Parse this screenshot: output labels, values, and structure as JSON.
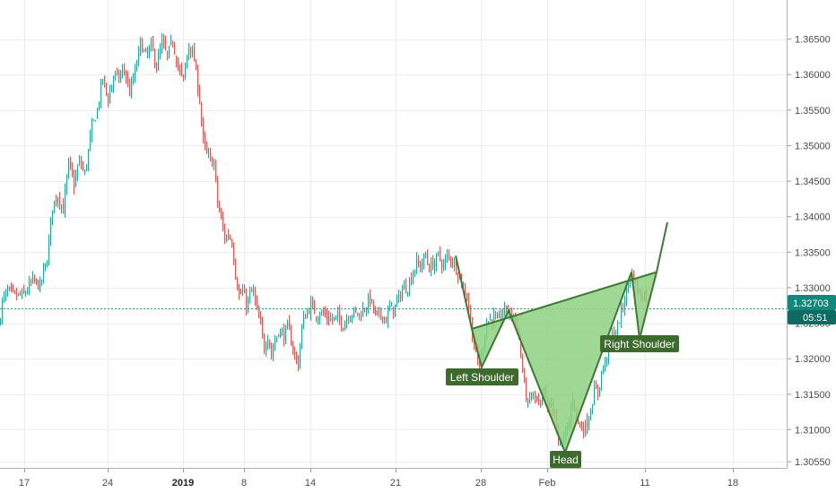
{
  "chart_data": {
    "type": "candlestick",
    "x_tick_labels": [
      "17",
      "24",
      "2019",
      "8",
      "14",
      "21",
      "28",
      "Feb",
      "11",
      "18"
    ],
    "y_ticks": [
      1.3055,
      1.31,
      1.315,
      1.32,
      1.325,
      1.33,
      1.335,
      1.34,
      1.345,
      1.35,
      1.355,
      1.36,
      1.365
    ],
    "y_tick_labels": [
      "1.30550",
      "1.31000",
      "1.31500",
      "1.32000",
      "1.32500",
      "1.33000",
      "1.33500",
      "1.34000",
      "1.34500",
      "1.35000",
      "1.35500",
      "1.36000",
      "1.36500"
    ],
    "ylim": [
      1.3045,
      1.3705
    ],
    "last_price": 1.32703,
    "last_price_label": "1.32703",
    "countdown_label": "05:51",
    "price_path": [
      [
        0,
        1.3245
      ],
      [
        4,
        1.328
      ],
      [
        10,
        1.3295
      ],
      [
        18,
        1.3288
      ],
      [
        28,
        1.329
      ],
      [
        38,
        1.331
      ],
      [
        46,
        1.3302
      ],
      [
        54,
        1.334
      ],
      [
        60,
        1.3415
      ],
      [
        66,
        1.343
      ],
      [
        72,
        1.341
      ],
      [
        78,
        1.3475
      ],
      [
        84,
        1.3445
      ],
      [
        90,
        1.3478
      ],
      [
        96,
        1.346
      ],
      [
        104,
        1.3525
      ],
      [
        110,
        1.355
      ],
      [
        116,
        1.3595
      ],
      [
        122,
        1.3565
      ],
      [
        128,
        1.3598
      ],
      [
        134,
        1.3595
      ],
      [
        140,
        1.3608
      ],
      [
        146,
        1.3575
      ],
      [
        152,
        1.3603
      ],
      [
        158,
        1.3645
      ],
      [
        164,
        1.3625
      ],
      [
        170,
        1.364
      ],
      [
        176,
        1.3612
      ],
      [
        182,
        1.3645
      ],
      [
        188,
        1.3625
      ],
      [
        194,
        1.3648
      ],
      [
        200,
        1.361
      ],
      [
        206,
        1.3592
      ],
      [
        212,
        1.3645
      ],
      [
        218,
        1.362
      ],
      [
        224,
        1.3565
      ],
      [
        228,
        1.3505
      ],
      [
        232,
        1.3488
      ],
      [
        236,
        1.348
      ],
      [
        240,
        1.3475
      ],
      [
        244,
        1.342
      ],
      [
        248,
        1.3395
      ],
      [
        252,
        1.337
      ],
      [
        256,
        1.3375
      ],
      [
        260,
        1.3365
      ],
      [
        264,
        1.332
      ],
      [
        268,
        1.3288
      ],
      [
        272,
        1.3295
      ],
      [
        276,
        1.3275
      ],
      [
        280,
        1.329
      ],
      [
        284,
        1.3295
      ],
      [
        288,
        1.3265
      ],
      [
        292,
        1.3245
      ],
      [
        296,
        1.3215
      ],
      [
        300,
        1.3235
      ],
      [
        304,
        1.3205
      ],
      [
        308,
        1.3225
      ],
      [
        312,
        1.324
      ],
      [
        318,
        1.3232
      ],
      [
        322,
        1.3245
      ],
      [
        326,
        1.3225
      ],
      [
        330,
        1.3205
      ],
      [
        334,
        1.3192
      ],
      [
        338,
        1.3245
      ],
      [
        342,
        1.3262
      ],
      [
        348,
        1.3275
      ],
      [
        354,
        1.3262
      ],
      [
        360,
        1.3265
      ],
      [
        366,
        1.3258
      ],
      [
        372,
        1.3255
      ],
      [
        378,
        1.3258
      ],
      [
        384,
        1.3248
      ],
      [
        390,
        1.3262
      ],
      [
        396,
        1.3265
      ],
      [
        402,
        1.3262
      ],
      [
        408,
        1.3272
      ],
      [
        414,
        1.3285
      ],
      [
        418,
        1.3268
      ],
      [
        422,
        1.3258
      ],
      [
        428,
        1.3262
      ],
      [
        432,
        1.3255
      ],
      [
        436,
        1.3272
      ],
      [
        440,
        1.3268
      ],
      [
        446,
        1.3285
      ],
      [
        450,
        1.3298
      ],
      [
        456,
        1.3302
      ],
      [
        460,
        1.3315
      ],
      [
        466,
        1.3335
      ],
      [
        470,
        1.333
      ],
      [
        476,
        1.3345
      ],
      [
        480,
        1.3328
      ],
      [
        486,
        1.3335
      ],
      [
        490,
        1.3345
      ],
      [
        496,
        1.333
      ],
      [
        500,
        1.3345
      ],
      [
        506,
        1.3338
      ],
      [
        512,
        1.3322
      ],
      [
        518,
        1.3298
      ],
      [
        522,
        1.3288
      ],
      [
        526,
        1.3255
      ],
      [
        530,
        1.3215
      ],
      [
        536,
        1.3188
      ],
      [
        540,
        1.322
      ],
      [
        544,
        1.3252
      ],
      [
        548,
        1.3255
      ],
      [
        552,
        1.3258
      ],
      [
        556,
        1.325
      ],
      [
        560,
        1.3262
      ],
      [
        566,
        1.3272
      ],
      [
        570,
        1.3262
      ],
      [
        574,
        1.3262
      ],
      [
        578,
        1.3245
      ],
      [
        582,
        1.3208
      ],
      [
        586,
        1.316
      ],
      [
        590,
        1.3135
      ],
      [
        594,
        1.315
      ],
      [
        600,
        1.314
      ],
      [
        604,
        1.313
      ],
      [
        608,
        1.3155
      ],
      [
        612,
        1.3125
      ],
      [
        616,
        1.3138
      ],
      [
        620,
        1.3115
      ],
      [
        624,
        1.309
      ],
      [
        628,
        1.3078
      ],
      [
        632,
        1.3095
      ],
      [
        636,
        1.3112
      ],
      [
        640,
        1.3148
      ],
      [
        644,
        1.3118
      ],
      [
        648,
        1.3105
      ],
      [
        652,
        1.3102
      ],
      [
        656,
        1.311
      ],
      [
        660,
        1.3128
      ],
      [
        664,
        1.3155
      ],
      [
        668,
        1.3152
      ],
      [
        672,
        1.318
      ],
      [
        676,
        1.3195
      ],
      [
        680,
        1.3215
      ],
      [
        684,
        1.3232
      ],
      [
        688,
        1.3235
      ],
      [
        692,
        1.3255
      ],
      [
        696,
        1.3275
      ],
      [
        700,
        1.3295
      ],
      [
        704,
        1.332
      ],
      [
        708,
        1.3315
      ],
      [
        712,
        1.3298
      ],
      [
        716,
        1.3288
      ],
      [
        720,
        1.3292
      ]
    ],
    "pattern": {
      "labels": [
        "Left Shoulder",
        "Head",
        "Right Shoulder"
      ],
      "points": {
        "start": [
          508,
          1.3345
        ],
        "neck_left": [
          526,
          1.3242
        ],
        "left_shoulder": [
          537,
          1.3188
        ],
        "neck_mid": [
          567,
          1.3268
        ],
        "head": [
          630,
          1.3068
        ],
        "neck_right": [
          704,
          1.3322
        ],
        "right_shoulder": [
          713,
          1.3228
        ],
        "neck_end": [
          732,
          1.3322
        ],
        "target": [
          744,
          1.3392
        ]
      }
    },
    "colors": {
      "up": "#26a69a",
      "down": "#ef5350",
      "pattern_fill": "#8ed081",
      "pattern_line": "#3d7a34",
      "label_bg": "#3d6b2e",
      "price_line": "#1e9b8a",
      "price_label_bg": "#12877c",
      "countdown_bg": "#0d6b62",
      "grid": "#ececec"
    }
  }
}
